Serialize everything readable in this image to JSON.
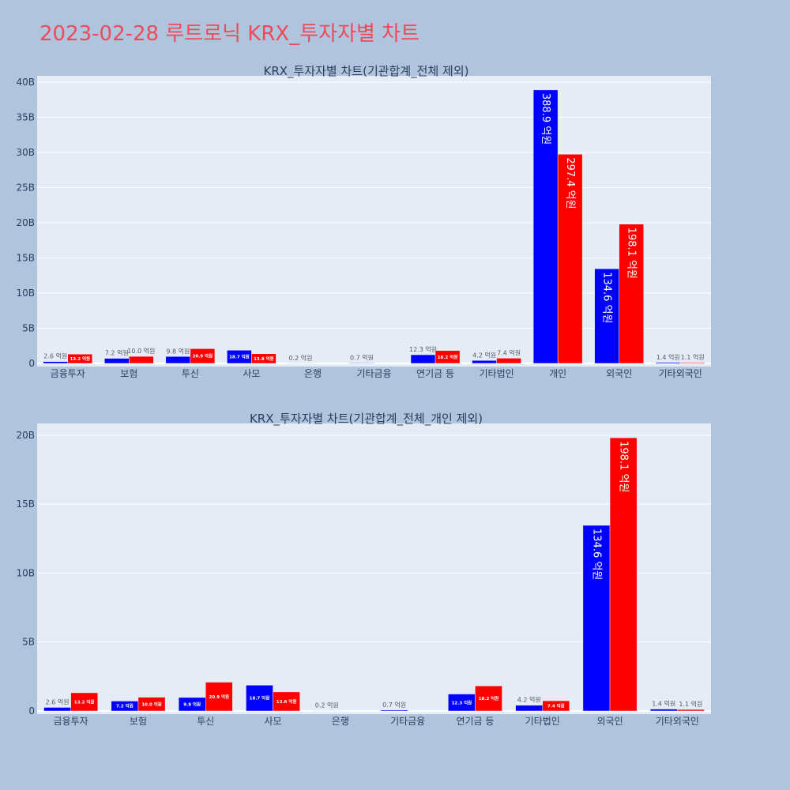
{
  "page_title": "2023-02-28 루트로닉 KRX_투자자별 차트",
  "colors": {
    "buy": "#0000ff",
    "sell": "#ff0000",
    "plot_bg": "#e5ecf6",
    "paper_bg": "#b0c4de",
    "title": "#ef4a5a"
  },
  "chart_data": [
    {
      "type": "bar",
      "title": "KRX_투자자별 차트(기관합계_전체 제외)",
      "categories": [
        "금융투자",
        "보험",
        "투신",
        "사모",
        "은행",
        "기타금융",
        "연기금 등",
        "기타법인",
        "개인",
        "외국인",
        "기타외국인"
      ],
      "series": [
        {
          "values": [
            0.26,
            0.72,
            0.98,
            1.87,
            0.02,
            0.07,
            1.23,
            0.42,
            38.89,
            13.46,
            0.14
          ],
          "labels": [
            "2.6 억원",
            "7.2 억원",
            "9.8 억원",
            "18.7 억원",
            "0.2 억원",
            "0.7 억원",
            "12.3 억원",
            "4.2 억원",
            "388.9 억원",
            "134.6 억원",
            "1.4 억원"
          ]
        },
        {
          "values": [
            1.32,
            1.0,
            2.09,
            1.38,
            null,
            null,
            1.82,
            0.74,
            29.74,
            19.81,
            0.11
          ],
          "labels": [
            "13.2 억원",
            "10.0 억원",
            "20.9 억원",
            "13.8 억원",
            "",
            "",
            "18.2 억원",
            "7.4 억원",
            "297.4 억원",
            "198.1 억원",
            "1.1 억원"
          ]
        }
      ],
      "y_ticks": [
        "0",
        "5B",
        "10B",
        "15B",
        "20B",
        "25B",
        "30B",
        "35B",
        "40B"
      ],
      "ylim": [
        0,
        40.9
      ],
      "grid": true,
      "legend": "none"
    },
    {
      "type": "bar",
      "title": "KRX_투자자별 차트(기관합계_전체_개인 제외)",
      "categories": [
        "금융투자",
        "보험",
        "투신",
        "사모",
        "은행",
        "기타금융",
        "연기금 등",
        "기타법인",
        "외국인",
        "기타외국인"
      ],
      "series": [
        {
          "values": [
            0.26,
            0.72,
            0.98,
            1.87,
            0.02,
            0.07,
            1.23,
            0.42,
            13.46,
            0.14
          ],
          "labels": [
            "2.6 억원",
            "7.2 억원",
            "9.8 억원",
            "18.7 억원",
            "0.2 억원",
            "0.7 억원",
            "12.3 억원",
            "4.2 억원",
            "134.6 억원",
            "1.4 억원"
          ]
        },
        {
          "values": [
            1.32,
            1.0,
            2.09,
            1.38,
            null,
            null,
            1.82,
            0.74,
            19.81,
            0.11
          ],
          "labels": [
            "13.2 억원",
            "10.0 억원",
            "20.9 억원",
            "13.8 억원",
            "",
            "",
            "18.2 억원",
            "7.4 억원",
            "198.1 억원",
            "1.1 억원"
          ]
        }
      ],
      "y_ticks": [
        "0",
        "5B",
        "10B",
        "15B",
        "20B"
      ],
      "ylim": [
        0,
        20.85
      ],
      "grid": true,
      "legend": "none"
    }
  ]
}
